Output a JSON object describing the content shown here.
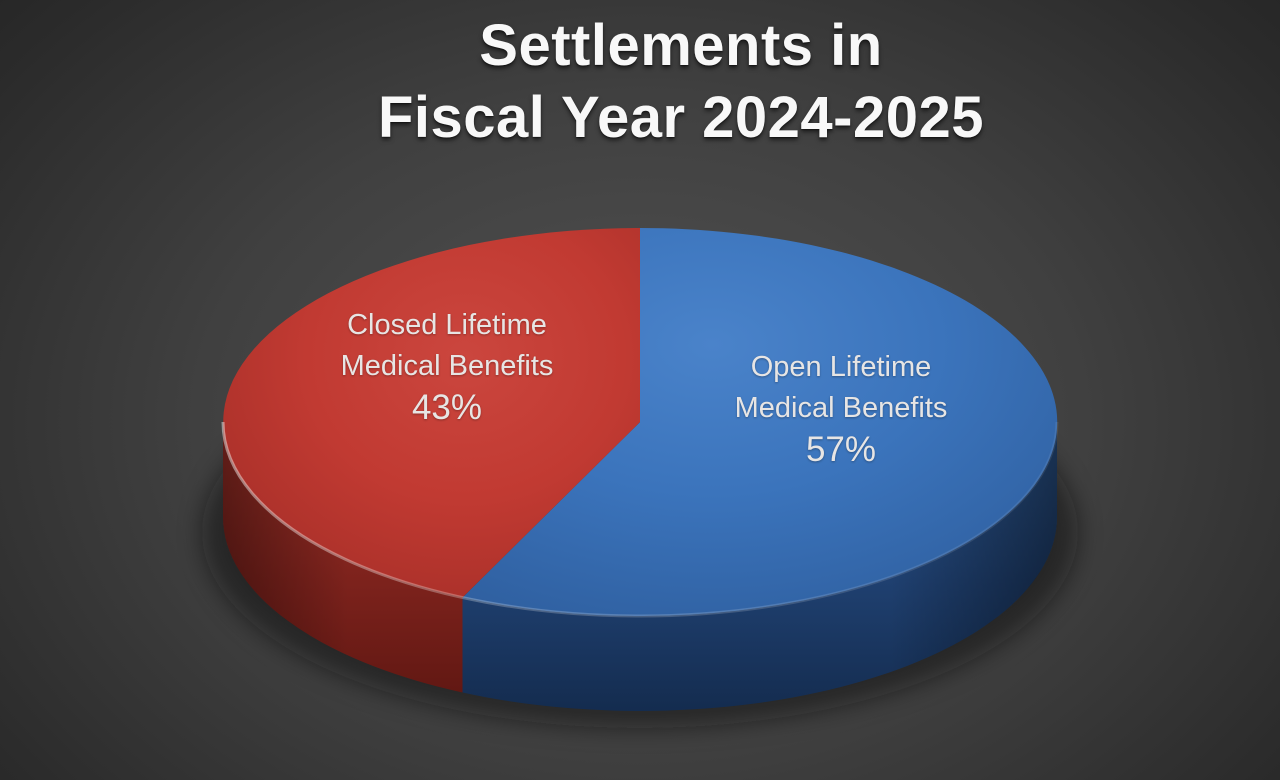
{
  "title": {
    "line1": "Settlements in",
    "line2": "Fiscal Year 2024-2025"
  },
  "chart_data": {
    "type": "pie",
    "style": "3d",
    "title": "Settlements in Fiscal Year 2024-2025",
    "unit": "percent",
    "start_angle": "12-o-clock",
    "direction": "clockwise",
    "legend": "none",
    "data_labels": "inside slices: category name + percentage",
    "slices": [
      {
        "id": "open",
        "label": "Open Lifetime Medical Benefits",
        "value": 57,
        "display_lines": [
          "Open Lifetime",
          "Medical Benefits",
          "57%"
        ],
        "top_color": "#3B74BC",
        "side_color": "#1F4070"
      },
      {
        "id": "closed",
        "label": "Closed Lifetime Medical Benefits",
        "value": 43,
        "display_lines": [
          "Closed Lifetime",
          "Medical Benefits",
          "43%"
        ],
        "top_color": "#C13A32",
        "side_color": "#7F231D"
      }
    ]
  },
  "colors": {
    "background_center": "#525252",
    "background_edge": "#242424",
    "title_text": "#F8F8F8",
    "label_text": "#E7E5E4"
  }
}
